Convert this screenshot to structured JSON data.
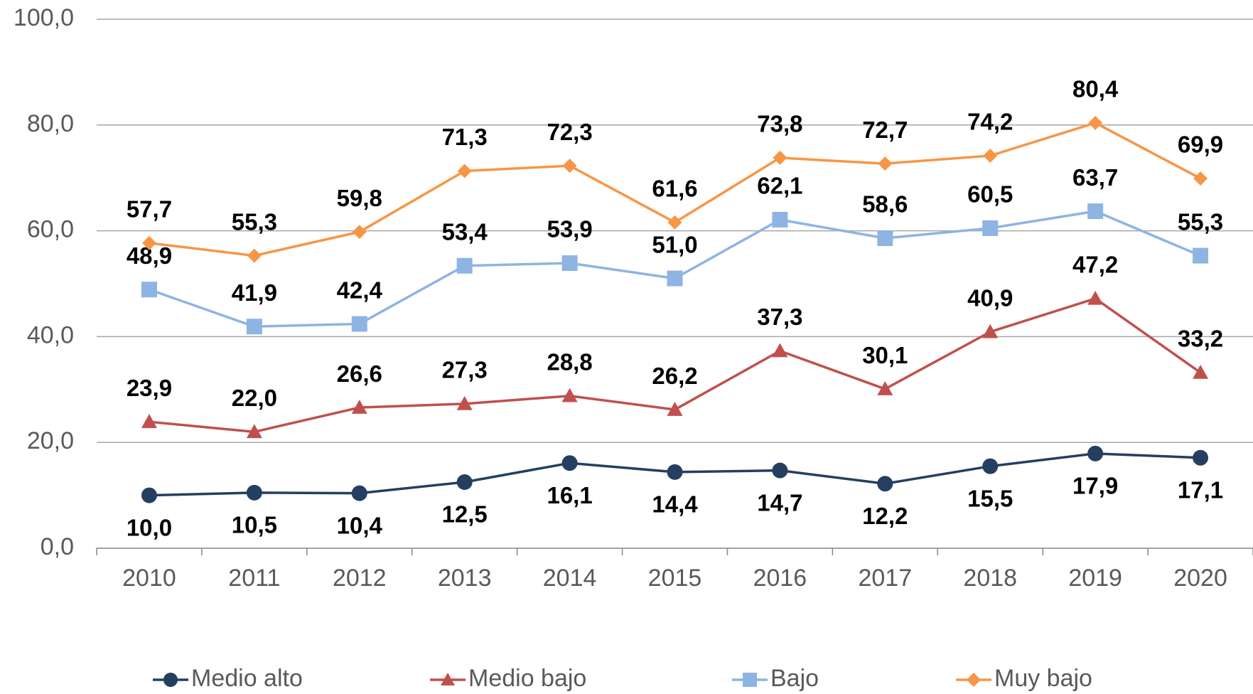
{
  "chart_data": {
    "type": "line",
    "categories": [
      "2010",
      "2011",
      "2012",
      "2013",
      "2014",
      "2015",
      "2016",
      "2017",
      "2018",
      "2019",
      "2020"
    ],
    "series": [
      {
        "name": "Medio alto",
        "color": "#243f60",
        "marker": "circle",
        "values": [
          10.0,
          10.5,
          10.4,
          12.5,
          16.1,
          14.4,
          14.7,
          12.2,
          15.5,
          17.9,
          17.1
        ],
        "value_labels": [
          "10,0",
          "10,5",
          "10,4",
          "12,5",
          "16,1",
          "14,4",
          "14,7",
          "12,2",
          "15,5",
          "17,9",
          "17,1"
        ]
      },
      {
        "name": "Medio bajo",
        "color": "#c0504d",
        "marker": "triangle",
        "values": [
          23.9,
          22.0,
          26.6,
          27.3,
          28.8,
          26.2,
          37.3,
          30.1,
          40.9,
          47.2,
          33.2
        ],
        "value_labels": [
          "23,9",
          "22,0",
          "26,6",
          "27,3",
          "28,8",
          "26,2",
          "37,3",
          "30,1",
          "40,9",
          "47,2",
          "33,2"
        ]
      },
      {
        "name": "Bajo",
        "color": "#8eb4e3",
        "marker": "square",
        "values": [
          48.9,
          41.9,
          42.4,
          53.4,
          53.9,
          51.0,
          62.1,
          58.6,
          60.5,
          63.7,
          55.3
        ],
        "value_labels": [
          "48,9",
          "41,9",
          "42,4",
          "53,4",
          "53,9",
          "51,0",
          "62,1",
          "58,6",
          "60,5",
          "63,7",
          "55,3"
        ]
      },
      {
        "name": "Muy bajo",
        "color": "#f79646",
        "marker": "diamond",
        "values": [
          57.7,
          55.3,
          59.8,
          71.3,
          72.3,
          61.6,
          73.8,
          72.7,
          74.2,
          80.4,
          69.9
        ],
        "value_labels": [
          "57,7",
          "55,3",
          "59,8",
          "71,3",
          "72,3",
          "61,6",
          "73,8",
          "72,7",
          "74,2",
          "80,4",
          "69,9"
        ]
      }
    ],
    "ylim": [
      0,
      100
    ],
    "yticks": [
      {
        "value": 0,
        "label": "0,0"
      },
      {
        "value": 20,
        "label": "20,0"
      },
      {
        "value": 40,
        "label": "40,0"
      },
      {
        "value": 60,
        "label": "60,0"
      },
      {
        "value": 80,
        "label": "80,0"
      },
      {
        "value": 100,
        "label": "100,0"
      }
    ],
    "grid": true,
    "legend": "bottom"
  }
}
